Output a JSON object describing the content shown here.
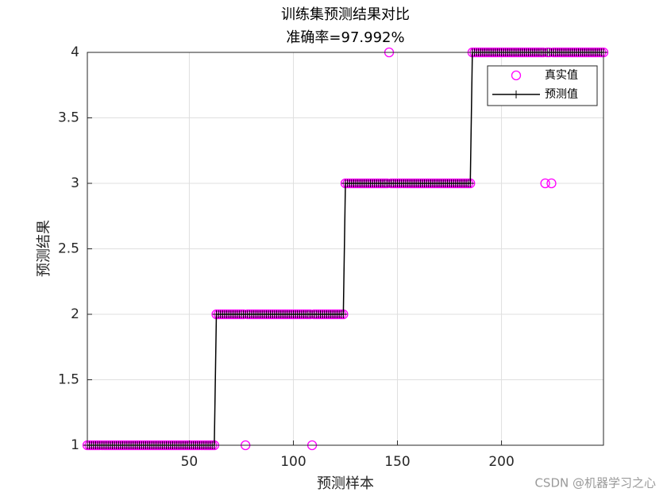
{
  "chart_data": {
    "type": "line",
    "title": "训练集预测结果对比",
    "subtitle": "准确率=97.992%",
    "x_label": "预测样本",
    "y_label": "预测结果",
    "watermark": "CSDN @机器学习之心",
    "xlim": [
      1,
      249
    ],
    "ylim": [
      1,
      4
    ],
    "xticks": [
      50,
      100,
      150,
      200
    ],
    "yticks": [
      1,
      1.5,
      2,
      2.5,
      3,
      3.5,
      4
    ],
    "grid": true,
    "legend": "northeast",
    "x": [
      1,
      2,
      3,
      4,
      5,
      6,
      7,
      8,
      9,
      10,
      11,
      12,
      13,
      14,
      15,
      16,
      17,
      18,
      19,
      20,
      21,
      22,
      23,
      24,
      25,
      26,
      27,
      28,
      29,
      30,
      31,
      32,
      33,
      34,
      35,
      36,
      37,
      38,
      39,
      40,
      41,
      42,
      43,
      44,
      45,
      46,
      47,
      48,
      49,
      50,
      51,
      52,
      53,
      54,
      55,
      56,
      57,
      58,
      59,
      60,
      61,
      62,
      63,
      64,
      65,
      66,
      67,
      68,
      69,
      70,
      71,
      72,
      73,
      74,
      75,
      76,
      77,
      78,
      79,
      80,
      81,
      82,
      83,
      84,
      85,
      86,
      87,
      88,
      89,
      90,
      91,
      92,
      93,
      94,
      95,
      96,
      97,
      98,
      99,
      100,
      101,
      102,
      103,
      104,
      105,
      106,
      107,
      108,
      109,
      110,
      111,
      112,
      113,
      114,
      115,
      116,
      117,
      118,
      119,
      120,
      121,
      122,
      123,
      124,
      125,
      126,
      127,
      128,
      129,
      130,
      131,
      132,
      133,
      134,
      135,
      136,
      137,
      138,
      139,
      140,
      141,
      142,
      143,
      144,
      145,
      146,
      147,
      148,
      149,
      150,
      151,
      152,
      153,
      154,
      155,
      156,
      157,
      158,
      159,
      160,
      161,
      162,
      163,
      164,
      165,
      166,
      167,
      168,
      169,
      170,
      171,
      172,
      173,
      174,
      175,
      176,
      177,
      178,
      179,
      180,
      181,
      182,
      183,
      184,
      185,
      186,
      187,
      188,
      189,
      190,
      191,
      192,
      193,
      194,
      195,
      196,
      197,
      198,
      199,
      200,
      201,
      202,
      203,
      204,
      205,
      206,
      207,
      208,
      209,
      210,
      211,
      212,
      213,
      214,
      215,
      216,
      217,
      218,
      219,
      220,
      221,
      222,
      223,
      224,
      225,
      226,
      227,
      228,
      229,
      230,
      231,
      232,
      233,
      234,
      235,
      236,
      237,
      238,
      239,
      240,
      241,
      242,
      243,
      244,
      245,
      246,
      247,
      248,
      249
    ],
    "series": [
      {
        "name": "真实值",
        "color": "#ff00ff",
        "marker": "o",
        "values": [
          1,
          1,
          1,
          1,
          1,
          1,
          1,
          1,
          1,
          1,
          1,
          1,
          1,
          1,
          1,
          1,
          1,
          1,
          1,
          1,
          1,
          1,
          1,
          1,
          1,
          1,
          1,
          1,
          1,
          1,
          1,
          1,
          1,
          1,
          1,
          1,
          1,
          1,
          1,
          1,
          1,
          1,
          1,
          1,
          1,
          1,
          1,
          1,
          1,
          1,
          1,
          1,
          1,
          1,
          1,
          1,
          1,
          1,
          1,
          1,
          1,
          1,
          2,
          2,
          2,
          2,
          2,
          2,
          2,
          2,
          2,
          2,
          2,
          2,
          2,
          2,
          1,
          2,
          2,
          2,
          2,
          2,
          2,
          2,
          2,
          2,
          2,
          2,
          2,
          2,
          2,
          2,
          2,
          2,
          2,
          2,
          2,
          2,
          2,
          2,
          2,
          2,
          2,
          2,
          2,
          2,
          2,
          2,
          1,
          2,
          2,
          2,
          2,
          2,
          2,
          2,
          2,
          2,
          2,
          2,
          2,
          2,
          2,
          2,
          3,
          3,
          3,
          3,
          3,
          3,
          3,
          3,
          3,
          3,
          3,
          3,
          3,
          3,
          3,
          3,
          3,
          3,
          3,
          3,
          3,
          4,
          3,
          3,
          3,
          3,
          3,
          3,
          3,
          3,
          3,
          3,
          3,
          3,
          3,
          3,
          3,
          3,
          3,
          3,
          3,
          3,
          3,
          3,
          3,
          3,
          3,
          3,
          3,
          3,
          3,
          3,
          3,
          3,
          3,
          3,
          3,
          3,
          3,
          3,
          3,
          4,
          4,
          4,
          4,
          4,
          4,
          4,
          4,
          4,
          4,
          4,
          4,
          4,
          4,
          4,
          4,
          4,
          4,
          4,
          4,
          4,
          4,
          4,
          4,
          4,
          4,
          4,
          4,
          4,
          4,
          4,
          4,
          4,
          4,
          4,
          3,
          4,
          4,
          3,
          4,
          4,
          4,
          4,
          4,
          4,
          4,
          4,
          4,
          4,
          4,
          4,
          4,
          4,
          4,
          4,
          4,
          4,
          4,
          4,
          4,
          4,
          4,
          4,
          4
        ]
      },
      {
        "name": "预测值",
        "color": "#000000",
        "marker": "+",
        "values": [
          1,
          1,
          1,
          1,
          1,
          1,
          1,
          1,
          1,
          1,
          1,
          1,
          1,
          1,
          1,
          1,
          1,
          1,
          1,
          1,
          1,
          1,
          1,
          1,
          1,
          1,
          1,
          1,
          1,
          1,
          1,
          1,
          1,
          1,
          1,
          1,
          1,
          1,
          1,
          1,
          1,
          1,
          1,
          1,
          1,
          1,
          1,
          1,
          1,
          1,
          1,
          1,
          1,
          1,
          1,
          1,
          1,
          1,
          1,
          1,
          1,
          1,
          2,
          2,
          2,
          2,
          2,
          2,
          2,
          2,
          2,
          2,
          2,
          2,
          2,
          2,
          2,
          2,
          2,
          2,
          2,
          2,
          2,
          2,
          2,
          2,
          2,
          2,
          2,
          2,
          2,
          2,
          2,
          2,
          2,
          2,
          2,
          2,
          2,
          2,
          2,
          2,
          2,
          2,
          2,
          2,
          2,
          2,
          2,
          2,
          2,
          2,
          2,
          2,
          2,
          2,
          2,
          2,
          2,
          2,
          2,
          2,
          2,
          2,
          3,
          3,
          3,
          3,
          3,
          3,
          3,
          3,
          3,
          3,
          3,
          3,
          3,
          3,
          3,
          3,
          3,
          3,
          3,
          3,
          3,
          3,
          3,
          3,
          3,
          3,
          3,
          3,
          3,
          3,
          3,
          3,
          3,
          3,
          3,
          3,
          3,
          3,
          3,
          3,
          3,
          3,
          3,
          3,
          3,
          3,
          3,
          3,
          3,
          3,
          3,
          3,
          3,
          3,
          3,
          3,
          3,
          3,
          3,
          3,
          3,
          4,
          4,
          4,
          4,
          4,
          4,
          4,
          4,
          4,
          4,
          4,
          4,
          4,
          4,
          4,
          4,
          4,
          4,
          4,
          4,
          4,
          4,
          4,
          4,
          4,
          4,
          4,
          4,
          4,
          4,
          4,
          4,
          4,
          4,
          4,
          4,
          4,
          4,
          4,
          4,
          4,
          4,
          4,
          4,
          4,
          4,
          4,
          4,
          4,
          4,
          4,
          4,
          4,
          4,
          4,
          4,
          4,
          4,
          4,
          4,
          4,
          4,
          4,
          4
        ]
      }
    ]
  }
}
